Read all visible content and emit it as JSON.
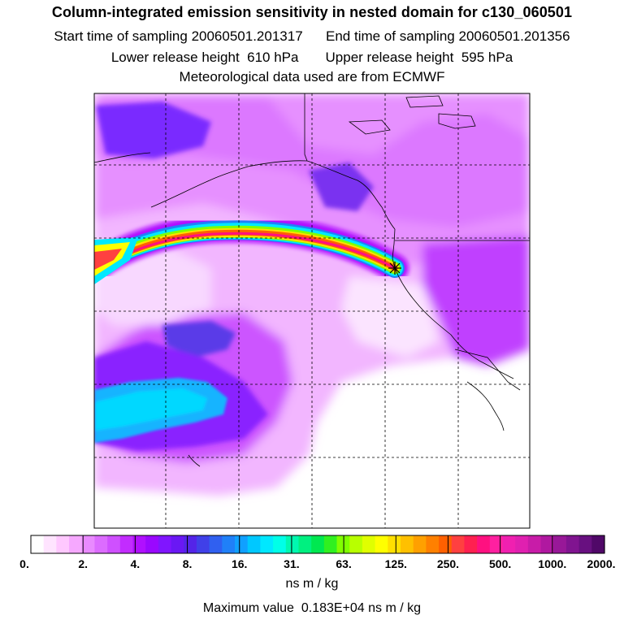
{
  "header": {
    "title": "Column-integrated emission sensitivity in nested domain for c130_060501",
    "start_label": "Start time of sampling",
    "start_time": "20060501.201317",
    "end_label": "End time of sampling",
    "end_time": "20060501.201356",
    "lower_label": "Lower release height",
    "lower_height": "610 hPa",
    "upper_label": "Upper release height",
    "upper_height": "595 hPa",
    "met_line": "Meteorological data used are from ECMWF"
  },
  "colorbar": {
    "ticks": [
      "0.",
      "2.",
      "4.",
      "8.",
      "16.",
      "31.",
      "63.",
      "125.",
      "250.",
      "500.",
      "1000.",
      "2000."
    ],
    "colors": [
      "#ffffff",
      "#ffe4ff",
      "#ffc8ff",
      "#f6a8ff",
      "#e98aff",
      "#dc6cff",
      "#cf50ff",
      "#c22cff",
      "#b010ff",
      "#9a08ff",
      "#8015ff",
      "#6a18f4",
      "#5424e8",
      "#4040e8",
      "#3060f0",
      "#2080f8",
      "#10a0ff",
      "#00c8ff",
      "#00e8ff",
      "#00ffe8",
      "#00f8b0",
      "#00f080",
      "#00e850",
      "#30f020",
      "#80ff00",
      "#b8ff00",
      "#e0ff00",
      "#ffff00",
      "#ffe000",
      "#ffc000",
      "#ffa000",
      "#ff8000",
      "#ff6000",
      "#ff4040",
      "#ff2050",
      "#ff1080",
      "#ff20a0",
      "#f020b0",
      "#e020b0",
      "#c81ca8",
      "#b018a0",
      "#981898",
      "#801490",
      "#681080",
      "#500868"
    ],
    "unit": "ns m / kg"
  },
  "footer": {
    "max_label": "Maximum value",
    "max_value": "0.183E+04",
    "max_unit": "ns m / kg"
  },
  "map": {
    "release_marker": "release-site-star",
    "graticule": "dashed"
  }
}
